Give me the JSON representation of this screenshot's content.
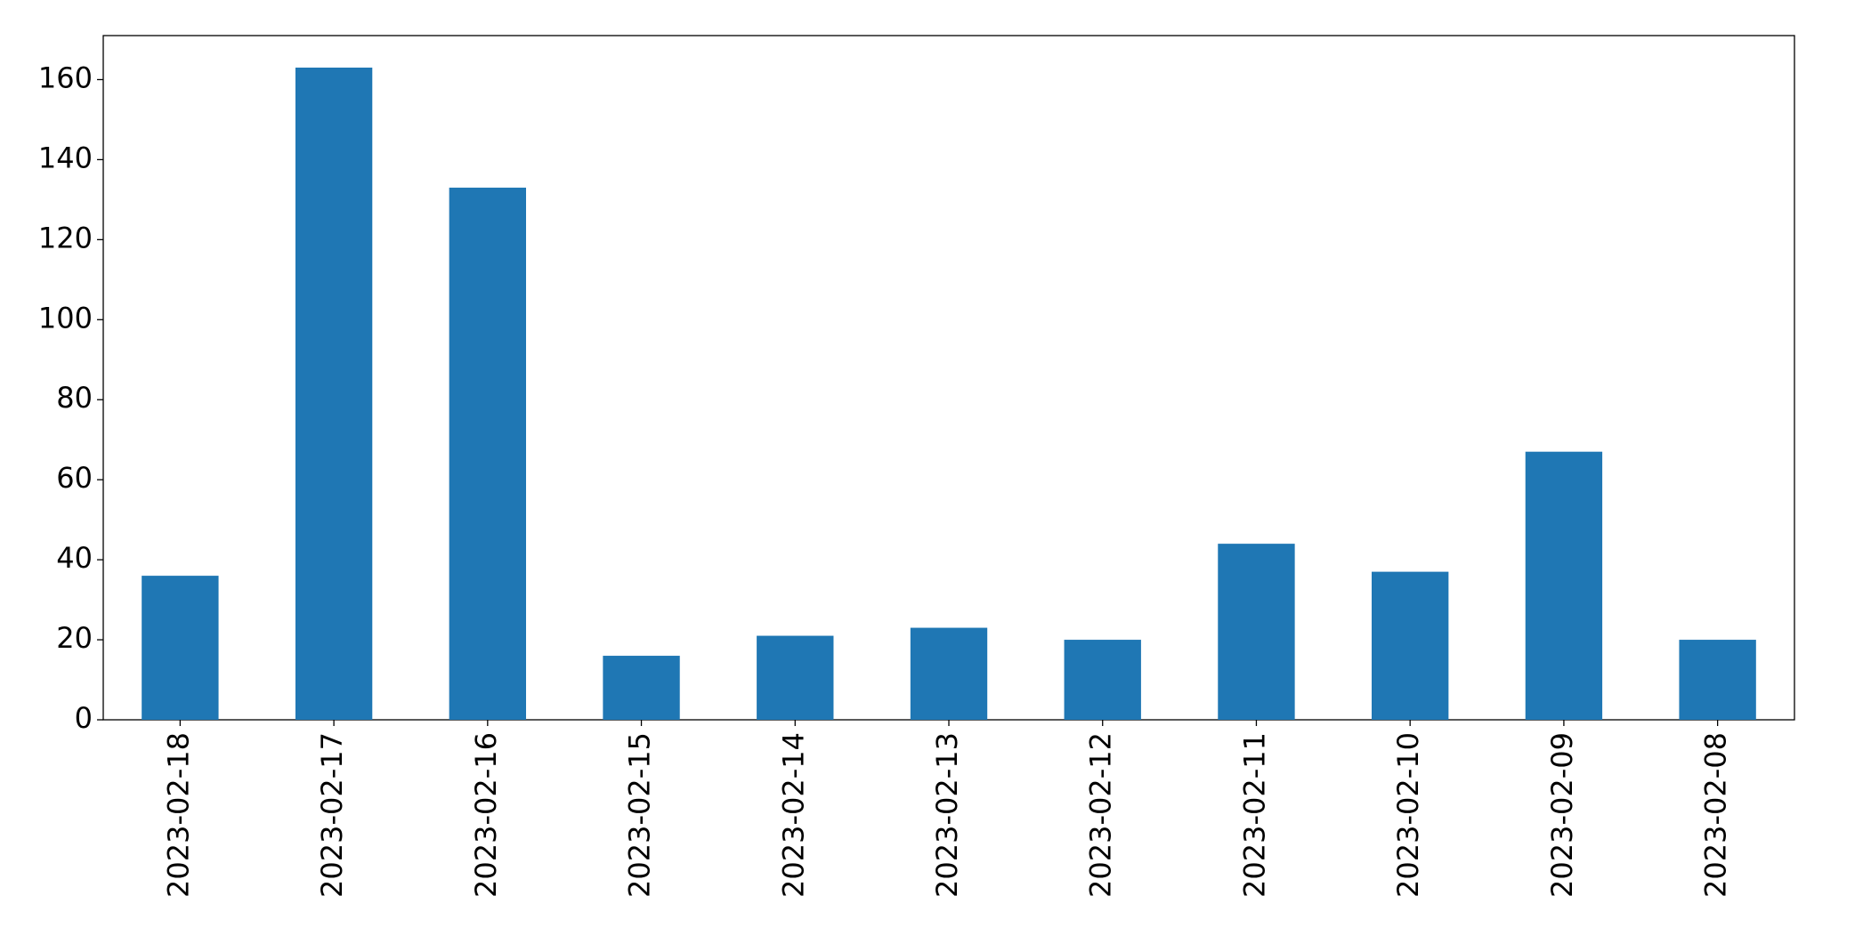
{
  "chart_data": {
    "type": "bar",
    "categories": [
      "2023-02-18",
      "2023-02-17",
      "2023-02-16",
      "2023-02-15",
      "2023-02-14",
      "2023-02-13",
      "2023-02-12",
      "2023-02-11",
      "2023-02-10",
      "2023-02-09",
      "2023-02-08"
    ],
    "values": [
      36,
      163,
      133,
      16,
      21,
      23,
      20,
      44,
      37,
      67,
      20
    ],
    "color": "#1f77b4",
    "ylim": [
      0,
      171
    ],
    "yticks": [
      0,
      20,
      40,
      60,
      80,
      100,
      120,
      140,
      160
    ],
    "grid": false
  }
}
